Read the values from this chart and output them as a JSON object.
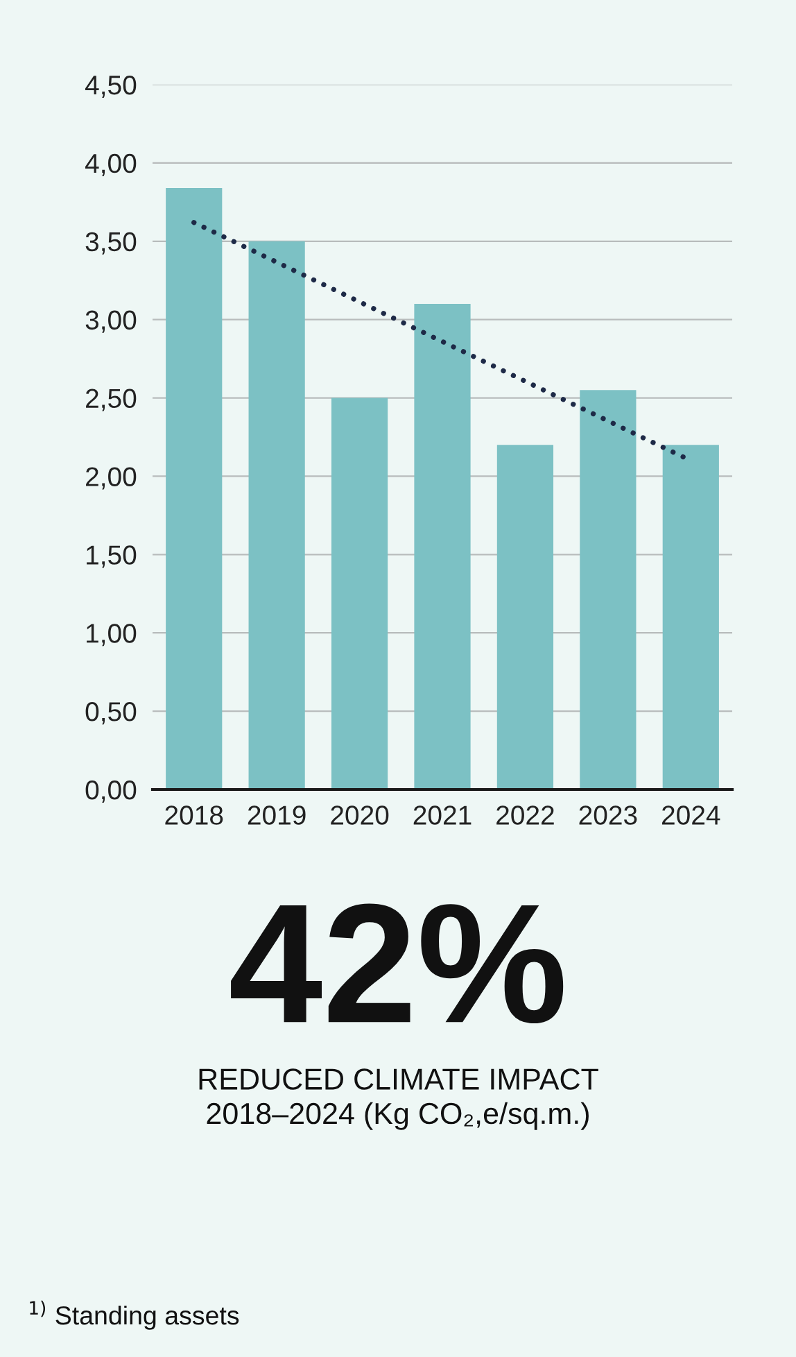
{
  "chart_data": {
    "type": "bar",
    "categories": [
      "2018",
      "2019",
      "2020",
      "2021",
      "2022",
      "2023",
      "2024"
    ],
    "series": [
      {
        "color": "#7cc1c4",
        "values": [
          3.84,
          3.5,
          2.5,
          3.1,
          2.2,
          2.55,
          2.2
        ]
      },
      {
        "type": "line",
        "color": "#1e2a47",
        "line_style": "dotted",
        "values": [
          3.62,
          null,
          null,
          null,
          null,
          null,
          2.1
        ]
      }
    ],
    "ylim": [
      0,
      4.5
    ],
    "yticks": [
      {
        "value": 0,
        "label": "0,00"
      },
      {
        "value": 0.5,
        "label": "0,50"
      },
      {
        "value": 1,
        "label": "1,00"
      },
      {
        "value": 1.5,
        "label": "1,50"
      },
      {
        "value": 2,
        "label": "2,00"
      },
      {
        "value": 2.5,
        "label": "2,50"
      },
      {
        "value": 3,
        "label": "3,00"
      },
      {
        "value": 3.5,
        "label": "3,50"
      },
      {
        "value": 4,
        "label": "4,00"
      },
      {
        "value": 4.5,
        "label": "4,50"
      }
    ],
    "grid": "y",
    "annotations": [
      "42%",
      "REDUCED CLIMATE IMPACT\n2018–2024 (Kg CO₂,e/sq.m.)",
      "$^{1)}$ Standing assets"
    ]
  }
}
